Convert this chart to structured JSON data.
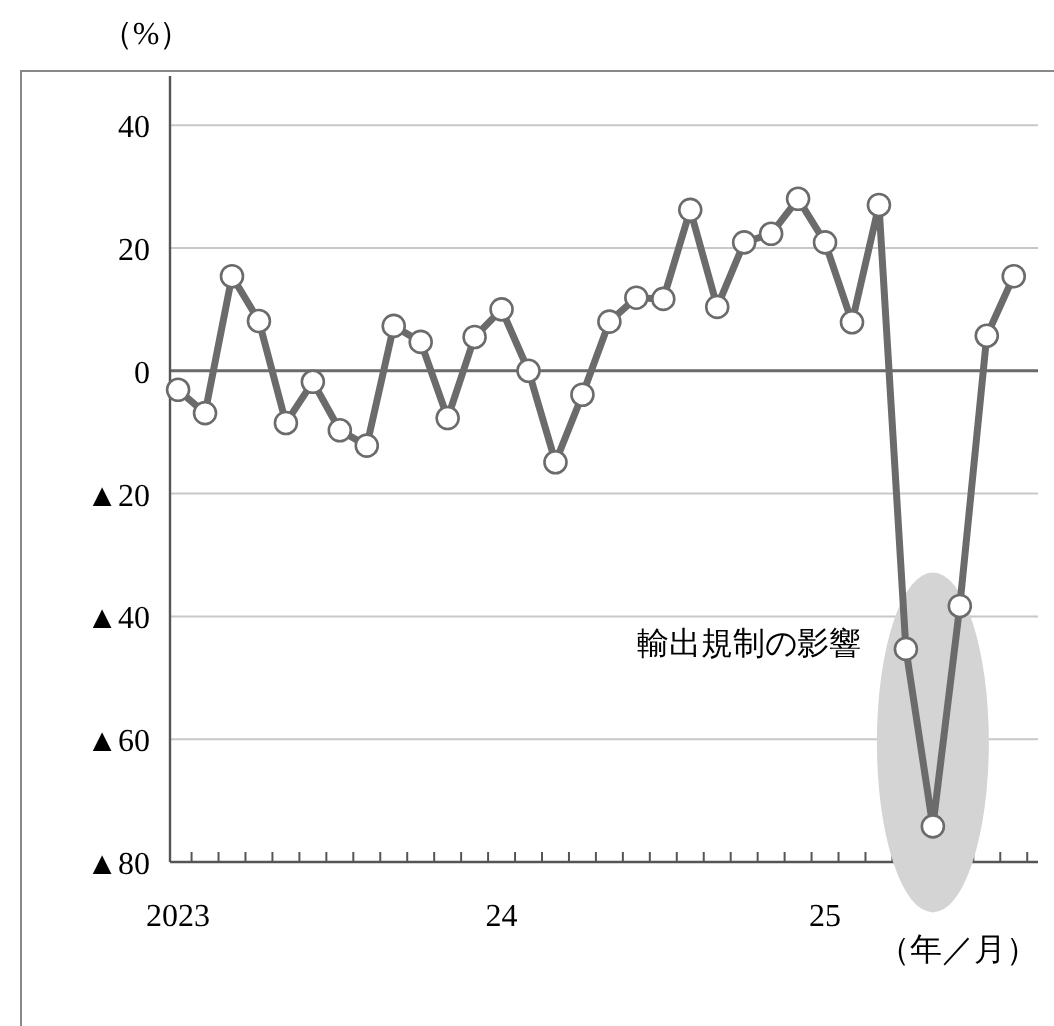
{
  "chart_data": {
    "type": "line",
    "ylabel": "（%）",
    "xlabel": "（年／月）",
    "x": [
      "2023-01",
      "2023-02",
      "2023-03",
      "2023-04",
      "2023-05",
      "2023-06",
      "2023-07",
      "2023-08",
      "2023-09",
      "2023-10",
      "2023-11",
      "2023-12",
      "2024-01",
      "2024-02",
      "2024-03",
      "2024-04",
      "2024-05",
      "2024-06",
      "2024-07",
      "2024-08",
      "2024-09",
      "2024-10",
      "2024-11",
      "2024-12",
      "2025-01",
      "2025-02",
      "2025-03",
      "2025-04",
      "2025-05",
      "2025-06",
      "2025-07",
      "2025-08"
    ],
    "series": [
      {
        "color": "#6b6b6b",
        "values": [
          -3.1,
          -6.9,
          15.4,
          8.1,
          -8.5,
          -1.8,
          -9.7,
          -12.2,
          7.3,
          4.7,
          -7.7,
          5.5,
          10,
          0,
          -14.9,
          -3.9,
          8,
          11.9,
          11.7,
          26.2,
          10.4,
          20.9,
          22.3,
          28,
          20.9,
          7.9,
          27,
          -45.3,
          -74.2,
          -38.3,
          5.7,
          15.4
        ]
      }
    ],
    "ylim": [
      -80,
      48
    ],
    "yticks": [
      40,
      20,
      0,
      {
        "value": -20,
        "label": "▲20"
      },
      {
        "value": -40,
        "label": "▲40"
      },
      {
        "value": -60,
        "label": "▲60"
      },
      {
        "value": -80,
        "label": "▲80"
      }
    ],
    "xlim": [
      "2022-12-22",
      "2025-08-28"
    ],
    "xticks": [
      {
        "value": "2023-01",
        "label": "2023"
      },
      {
        "value": "2023-01-16",
        "label": null
      },
      {
        "value": "2023-02-16",
        "label": null
      },
      {
        "value": "2023-03-16",
        "label": null
      },
      {
        "value": "2023-04-16",
        "label": null
      },
      {
        "value": "2023-05-16",
        "label": null
      },
      {
        "value": "2023-06-16",
        "label": null
      },
      {
        "value": "2023-07-16",
        "label": null
      },
      {
        "value": "2023-08-16",
        "label": null
      },
      {
        "value": "2023-09-16",
        "label": null
      },
      {
        "value": "2023-10-16",
        "label": null
      },
      {
        "value": "2023-11-16",
        "label": null
      },
      {
        "value": "2023-12-16",
        "label": null
      },
      {
        "value": "2024-01",
        "label": "24"
      },
      {
        "value": "2024-01-16",
        "label": null
      },
      {
        "value": "2024-02-16",
        "label": null
      },
      {
        "value": "2024-03-16",
        "label": null
      },
      {
        "value": "2024-04-16",
        "label": null
      },
      {
        "value": "2024-05-16",
        "label": null
      },
      {
        "value": "2024-06-16",
        "label": null
      },
      {
        "value": "2024-07-16",
        "label": null
      },
      {
        "value": "2024-08-16",
        "label": null
      },
      {
        "value": "2024-09-16",
        "label": null
      },
      {
        "value": "2024-10-16",
        "label": null
      },
      {
        "value": "2024-11-16",
        "label": null
      },
      {
        "value": "2024-12-16",
        "label": null
      },
      {
        "value": "2025-01",
        "label": "25"
      },
      {
        "value": "2025-01-16",
        "label": null
      },
      {
        "value": "2025-02-16",
        "label": null
      },
      {
        "value": "2025-03-16",
        "label": null
      },
      {
        "value": "2025-04-16",
        "label": null
      },
      {
        "value": "2025-05-16",
        "label": null
      },
      {
        "value": "2025-06-16",
        "label": null
      },
      {
        "value": "2025-07-16",
        "label": null
      },
      {
        "value": "2025-08-16",
        "label": null
      }
    ],
    "grid": "y",
    "marker": "circle",
    "line_style": "solid",
    "ref_lines": [
      {
        "axis": "y",
        "value": 0,
        "color": "#6b6b6b"
      }
    ],
    "annotations": [
      "輸出規制の影響"
    ]
  }
}
